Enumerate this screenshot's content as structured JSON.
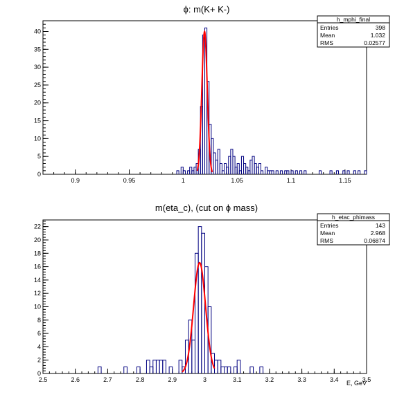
{
  "canvas_bg": "#ffffff",
  "colors": {
    "hist": "#000080",
    "fit": "#ff0000",
    "axis": "#000000"
  },
  "chart_data": [
    {
      "type": "histogram",
      "title": "ϕ: m(K+ K-)",
      "xlabel": "",
      "ylabel": "",
      "xlim": [
        0.87,
        1.17
      ],
      "ylim": [
        0,
        43
      ],
      "x_ticks": [
        0.9,
        0.95,
        1,
        1.05,
        1.1,
        1.15
      ],
      "x_tick_labels": [
        "0.9",
        "0.95",
        "1",
        "1.05",
        "1.1",
        "1.15"
      ],
      "y_ticks": [
        0,
        5,
        10,
        15,
        20,
        25,
        30,
        35,
        40
      ],
      "y_tick_labels": [
        "0",
        "5",
        "10",
        "15",
        "20",
        "25",
        "30",
        "35",
        "40"
      ],
      "bin_width": 0.002,
      "bins": [
        [
          0.994,
          1
        ],
        [
          0.998,
          2
        ],
        [
          1.0,
          1
        ],
        [
          1.004,
          1
        ],
        [
          1.006,
          2
        ],
        [
          1.008,
          1
        ],
        [
          1.01,
          2
        ],
        [
          1.012,
          3
        ],
        [
          1.014,
          7
        ],
        [
          1.016,
          19
        ],
        [
          1.018,
          39
        ],
        [
          1.02,
          41
        ],
        [
          1.022,
          26
        ],
        [
          1.024,
          14
        ],
        [
          1.026,
          10
        ],
        [
          1.028,
          6
        ],
        [
          1.03,
          4
        ],
        [
          1.032,
          7
        ],
        [
          1.034,
          3
        ],
        [
          1.036,
          1
        ],
        [
          1.038,
          3
        ],
        [
          1.04,
          2
        ],
        [
          1.042,
          5
        ],
        [
          1.044,
          7
        ],
        [
          1.046,
          5
        ],
        [
          1.048,
          2
        ],
        [
          1.05,
          3
        ],
        [
          1.052,
          1
        ],
        [
          1.054,
          5
        ],
        [
          1.056,
          3
        ],
        [
          1.058,
          2
        ],
        [
          1.06,
          1
        ],
        [
          1.062,
          4
        ],
        [
          1.064,
          5
        ],
        [
          1.066,
          3
        ],
        [
          1.068,
          2
        ],
        [
          1.07,
          3
        ],
        [
          1.072,
          1
        ],
        [
          1.076,
          2
        ],
        [
          1.078,
          1
        ],
        [
          1.08,
          1
        ],
        [
          1.082,
          1
        ],
        [
          1.086,
          1
        ],
        [
          1.09,
          1
        ],
        [
          1.094,
          1
        ],
        [
          1.096,
          1
        ],
        [
          1.1,
          1
        ],
        [
          1.104,
          1
        ],
        [
          1.108,
          1
        ],
        [
          1.112,
          1
        ],
        [
          1.126,
          1
        ],
        [
          1.136,
          1
        ],
        [
          1.142,
          1
        ],
        [
          1.148,
          1
        ],
        [
          1.152,
          1
        ],
        [
          1.158,
          1
        ],
        [
          1.162,
          1
        ],
        [
          1.168,
          1
        ]
      ],
      "fit": {
        "mean": 1.0198,
        "sigma": 0.0025,
        "amplitude": 40,
        "range": [
          1.013,
          1.027
        ]
      },
      "stats": {
        "name": "h_mphi_final",
        "entries_label": "Entries",
        "entries": "398",
        "mean_label": "Mean",
        "mean": "1.032",
        "rms_label": "RMS",
        "rms": "0.02577"
      }
    },
    {
      "type": "histogram",
      "title": "m(eta_c), (cut on ϕ mass)",
      "xlabel": "E, GeV",
      "ylabel": "",
      "xlim": [
        2.5,
        3.5
      ],
      "ylim": [
        0,
        23
      ],
      "x_ticks": [
        2.5,
        2.6,
        2.7,
        2.8,
        2.9,
        3,
        3.1,
        3.2,
        3.3,
        3.4,
        3.5
      ],
      "x_tick_labels": [
        "2.5",
        "2.6",
        "2.7",
        "2.8",
        "2.9",
        "3",
        "3.1",
        "3.2",
        "3.3",
        "3.4",
        "3.5"
      ],
      "y_ticks": [
        0,
        2,
        4,
        6,
        8,
        10,
        12,
        14,
        16,
        18,
        20,
        22
      ],
      "y_tick_labels": [
        "0",
        "2",
        "4",
        "6",
        "8",
        "10",
        "12",
        "14",
        "16",
        "18",
        "20",
        "22"
      ],
      "bin_width": 0.01,
      "bins": [
        [
          2.67,
          1
        ],
        [
          2.75,
          1
        ],
        [
          2.79,
          1
        ],
        [
          2.82,
          2
        ],
        [
          2.83,
          1
        ],
        [
          2.84,
          2
        ],
        [
          2.85,
          2
        ],
        [
          2.86,
          2
        ],
        [
          2.87,
          2
        ],
        [
          2.89,
          1
        ],
        [
          2.92,
          2
        ],
        [
          2.93,
          1
        ],
        [
          2.94,
          5
        ],
        [
          2.95,
          8
        ],
        [
          2.96,
          5
        ],
        [
          2.97,
          18
        ],
        [
          2.98,
          22
        ],
        [
          2.99,
          21
        ],
        [
          3.0,
          16
        ],
        [
          3.01,
          10
        ],
        [
          3.02,
          3
        ],
        [
          3.03,
          2
        ],
        [
          3.04,
          2
        ],
        [
          3.05,
          1
        ],
        [
          3.06,
          1
        ],
        [
          3.07,
          1
        ],
        [
          3.09,
          1
        ],
        [
          3.1,
          2
        ],
        [
          3.14,
          1
        ],
        [
          3.17,
          1
        ]
      ],
      "fit": {
        "mean": 2.984,
        "sigma": 0.0185,
        "amplitude": 16.6,
        "range": [
          2.93,
          3.03
        ]
      },
      "stats": {
        "name": "h_etac_phimass",
        "entries_label": "Entries",
        "entries": "143",
        "mean_label": "Mean",
        "mean": "2.968",
        "rms_label": "RMS",
        "rms": "0.06874"
      }
    }
  ]
}
